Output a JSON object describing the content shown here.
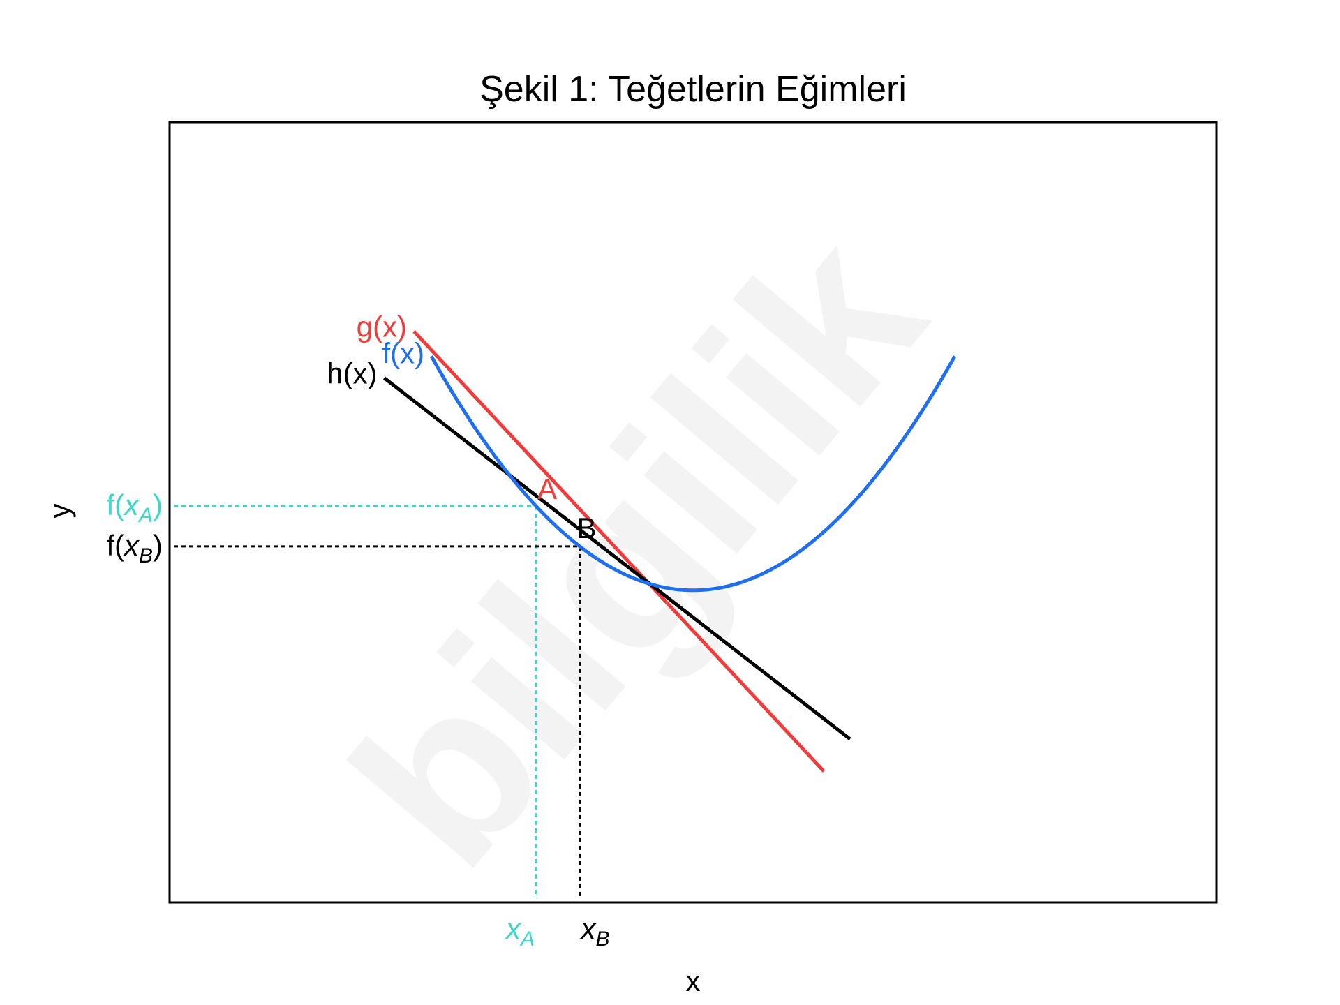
{
  "chart_data": {
    "type": "line",
    "title": "Şekil 1: Teğetlerin Eğimleri",
    "xlabel": "x",
    "ylabel": "y",
    "watermark": "bilgilik",
    "xlim": [
      -1.5,
      4.5
    ],
    "ylim": [
      -3.3,
      4.2
    ],
    "grid": false,
    "colors": {
      "f": "#1f6fef",
      "g": "#f23c3c",
      "h": "#000000",
      "xA": "#3fd6c7",
      "xB": "#000000"
    },
    "series": [
      {
        "name": "f(x)",
        "function": "(x - 1.5)^2 - 0.3",
        "x_range": [
          0,
          3
        ],
        "color": "#1f6fef"
      },
      {
        "name": "g(x)",
        "function": "-1.8x + 2.01",
        "x_range": [
          -0.1,
          2.25
        ],
        "color": "#f23c3c"
      },
      {
        "name": "h(x)",
        "function": "-1.3x + 1.39",
        "x_range": [
          -0.27,
          2.4
        ],
        "color": "#000000"
      }
    ],
    "points": [
      {
        "label": "A",
        "x": 0.6,
        "y": 0.51,
        "color": "#f23c3c"
      },
      {
        "label": "B",
        "x": 0.85,
        "y": 0.1225,
        "color": "#000000"
      }
    ],
    "x_ticks": [
      {
        "base": "x",
        "sub": "A",
        "value": 0.6,
        "color": "#3fd6c7"
      },
      {
        "base": "x",
        "sub": "B",
        "value": 0.85,
        "color": "#000000"
      }
    ],
    "y_ticks": [
      {
        "base": "f(",
        "var": "x",
        "sub": "A",
        "close": ")",
        "value": 0.51,
        "color": "#3fd6c7"
      },
      {
        "base": "f(",
        "var": "x",
        "sub": "B",
        "close": ")",
        "value": 0.1225,
        "color": "#000000"
      }
    ]
  }
}
